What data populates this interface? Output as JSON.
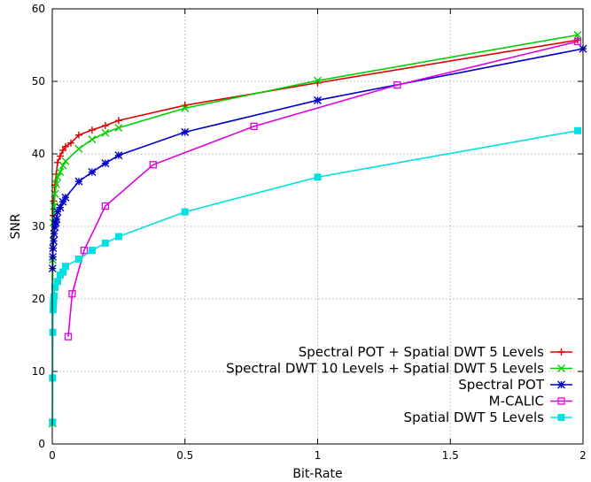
{
  "chart_data": {
    "type": "line",
    "title": "",
    "xlabel": "Bit-Rate",
    "ylabel": "SNR",
    "xlim": [
      0,
      2
    ],
    "ylim": [
      0,
      60
    ],
    "xticks": [
      0,
      0.5,
      1,
      1.5,
      2
    ],
    "xtick_labels": [
      "0",
      "0.5",
      "1",
      "1.5",
      "2"
    ],
    "yticks": [
      0,
      10,
      20,
      30,
      40,
      50,
      60
    ],
    "ytick_labels": [
      "0",
      "10",
      "20",
      "30",
      "40",
      "50",
      "60"
    ],
    "grid": true,
    "legend_position": "bottom-right",
    "series": [
      {
        "name": "Spectral POT + Spatial DWT 5 Levels",
        "color": "#e00000",
        "marker": "plus",
        "x": [
          0.001,
          0.003,
          0.005,
          0.01,
          0.015,
          0.02,
          0.03,
          0.04,
          0.05,
          0.07,
          0.1,
          0.15,
          0.2,
          0.25,
          0.5,
          1.0,
          1.98
        ],
        "y": [
          27.0,
          31.5,
          33.5,
          35.7,
          37.2,
          38.8,
          39.7,
          40.5,
          41.0,
          41.5,
          42.6,
          43.3,
          43.9,
          44.6,
          46.7,
          49.8,
          55.7
        ]
      },
      {
        "name": "Spectral DWT 10 Levels + Spatial DWT 5 Levels",
        "color": "#00d000",
        "marker": "x",
        "x": [
          0.001,
          0.002,
          0.004,
          0.007,
          0.01,
          0.015,
          0.02,
          0.03,
          0.04,
          0.05,
          0.1,
          0.15,
          0.2,
          0.25,
          0.5,
          1.0,
          1.98
        ],
        "y": [
          2.8,
          25.4,
          30.5,
          32.8,
          34.5,
          35.8,
          36.8,
          37.5,
          38.4,
          39.0,
          40.7,
          42.0,
          42.9,
          43.6,
          46.3,
          50.1,
          56.4
        ]
      },
      {
        "name": "Spectral POT",
        "color": "#0000c8",
        "marker": "star",
        "x": [
          0.001,
          0.002,
          0.003,
          0.005,
          0.007,
          0.01,
          0.013,
          0.016,
          0.02,
          0.03,
          0.04,
          0.05,
          0.1,
          0.15,
          0.2,
          0.25,
          0.5,
          1.0,
          2.0
        ],
        "y": [
          24.2,
          25.8,
          27.0,
          28.0,
          29.0,
          29.9,
          30.5,
          31.0,
          32.0,
          32.6,
          33.4,
          34.0,
          36.2,
          37.5,
          38.7,
          39.8,
          43.0,
          47.4,
          54.5
        ]
      },
      {
        "name": "M-CALIC",
        "color": "#e000e0",
        "marker": "square",
        "x": [
          0.06,
          0.075,
          0.12,
          0.2,
          0.38,
          0.76,
          1.3,
          1.98
        ],
        "y": [
          14.8,
          20.7,
          26.7,
          32.8,
          38.5,
          43.8,
          49.5,
          55.5
        ]
      },
      {
        "name": "Spatial DWT 5 Levels",
        "color": "#00e0e0",
        "marker": "filled-square",
        "x": [
          0.001,
          0.001,
          0.002,
          0.003,
          0.004,
          0.005,
          0.007,
          0.01,
          0.02,
          0.03,
          0.04,
          0.05,
          0.1,
          0.15,
          0.2,
          0.25,
          0.5,
          1.0,
          1.98
        ],
        "y": [
          3.0,
          9.1,
          15.4,
          18.5,
          19.3,
          19.8,
          20.4,
          21.6,
          22.4,
          23.3,
          23.7,
          24.5,
          25.5,
          26.7,
          27.7,
          28.6,
          32.0,
          36.8,
          43.2
        ]
      }
    ]
  }
}
